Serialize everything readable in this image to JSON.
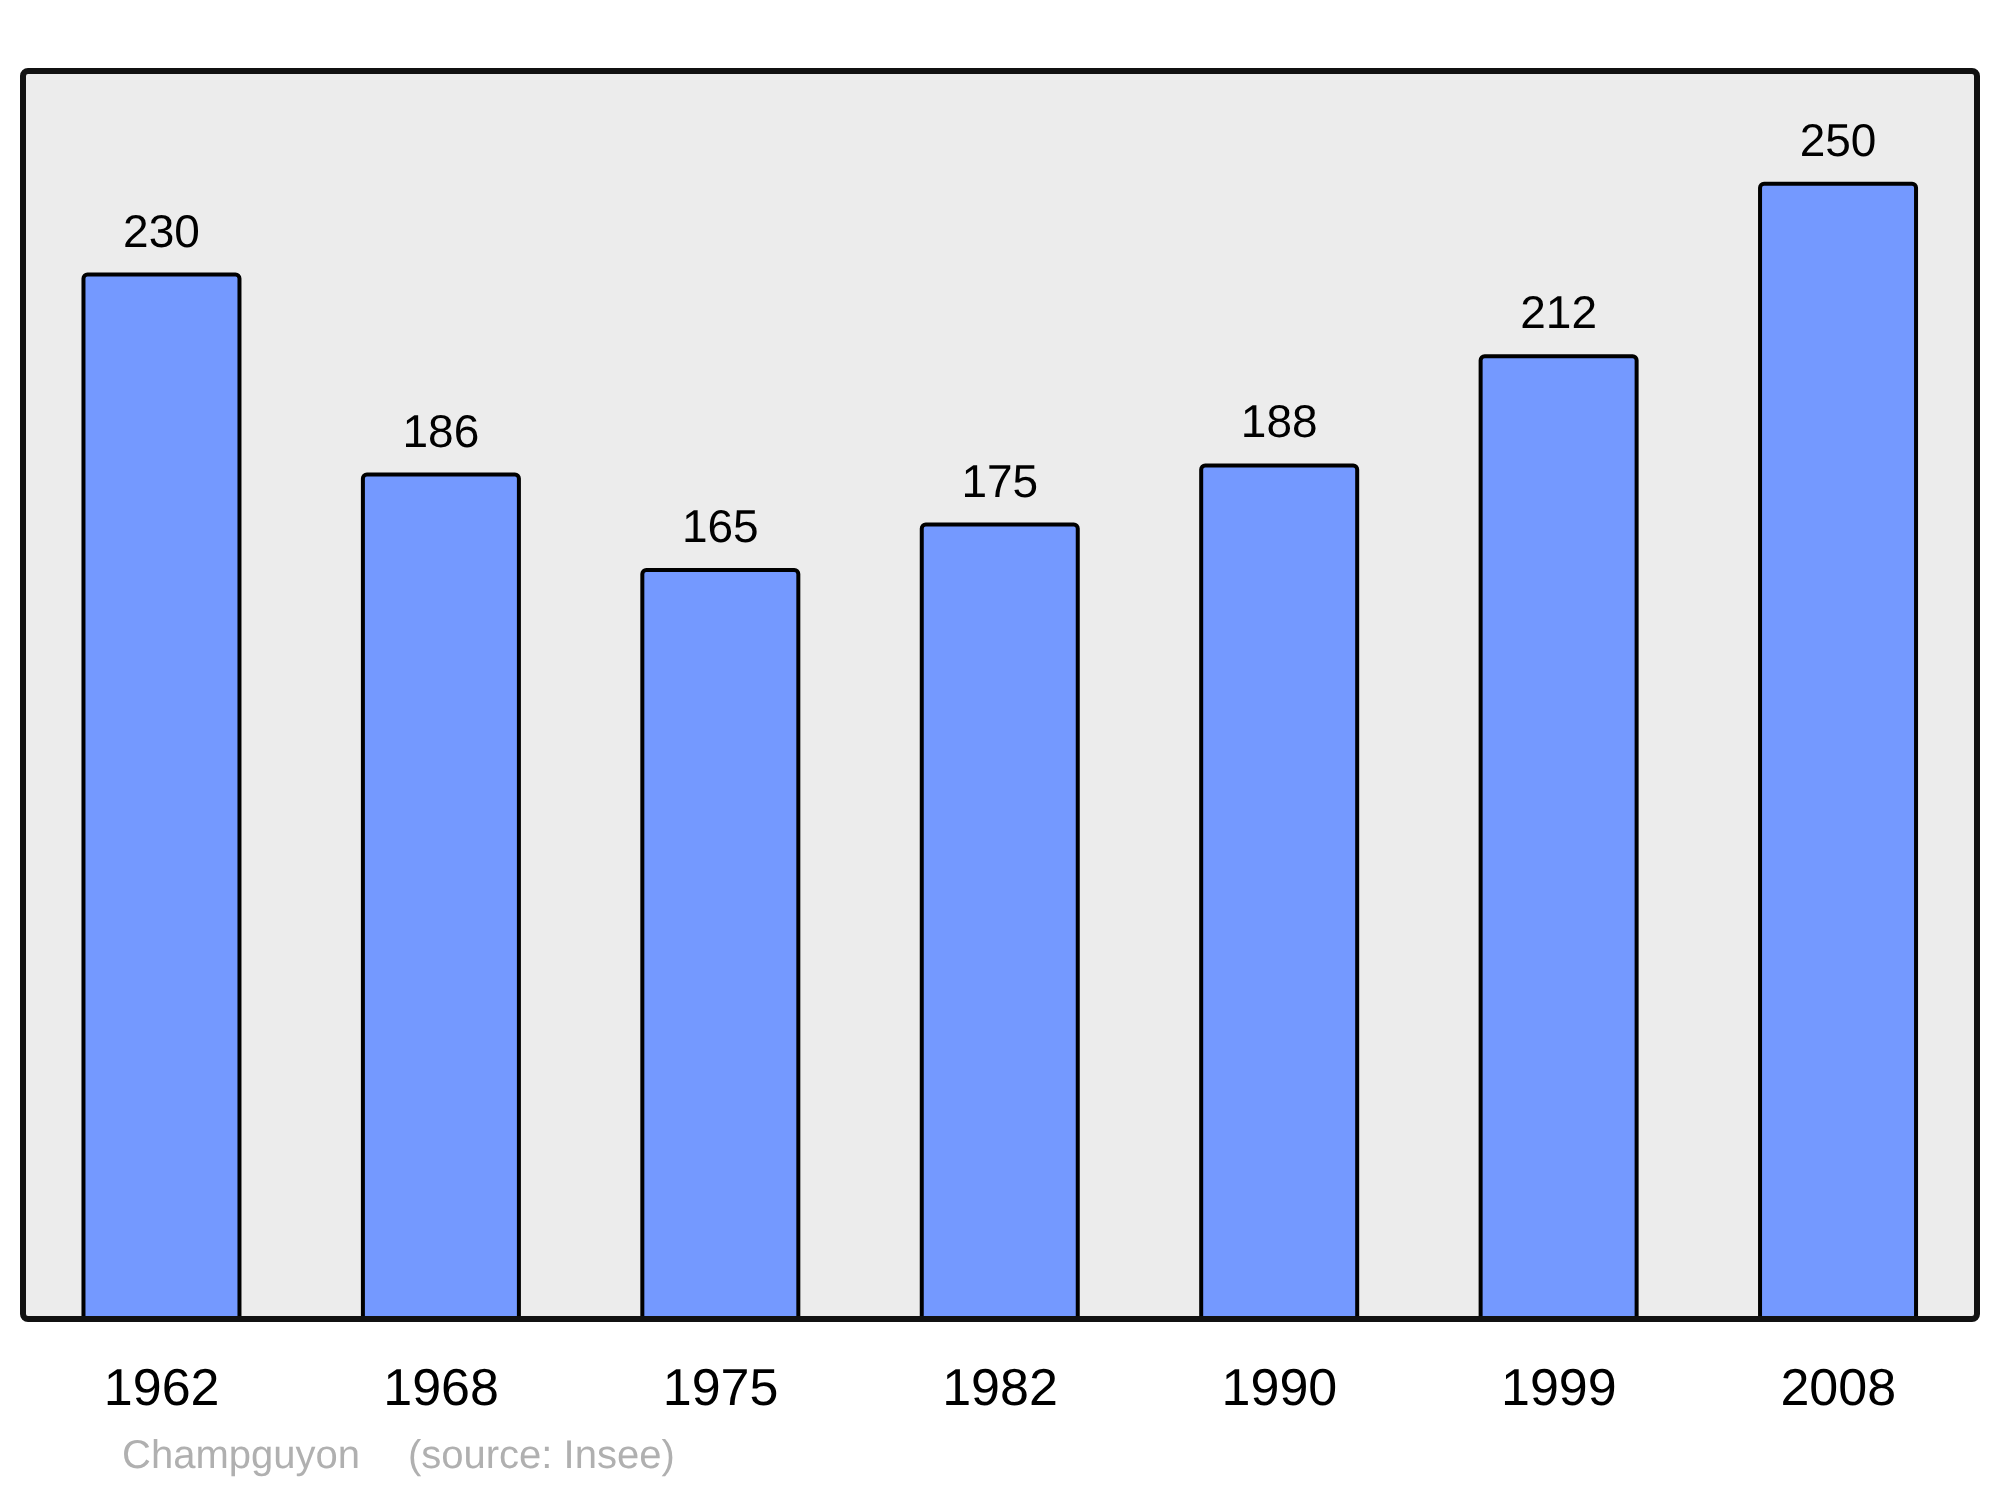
{
  "chart_data": {
    "type": "bar",
    "categories": [
      "1962",
      "1968",
      "1975",
      "1982",
      "1990",
      "1999",
      "2008"
    ],
    "values": [
      230,
      186,
      165,
      175,
      188,
      212,
      250
    ],
    "color": "#7499ff",
    "ylim": [
      0,
      275
    ],
    "data_labels": true,
    "grid": false,
    "annotations": [
      "Champguyon",
      "(source: Insee)"
    ]
  }
}
